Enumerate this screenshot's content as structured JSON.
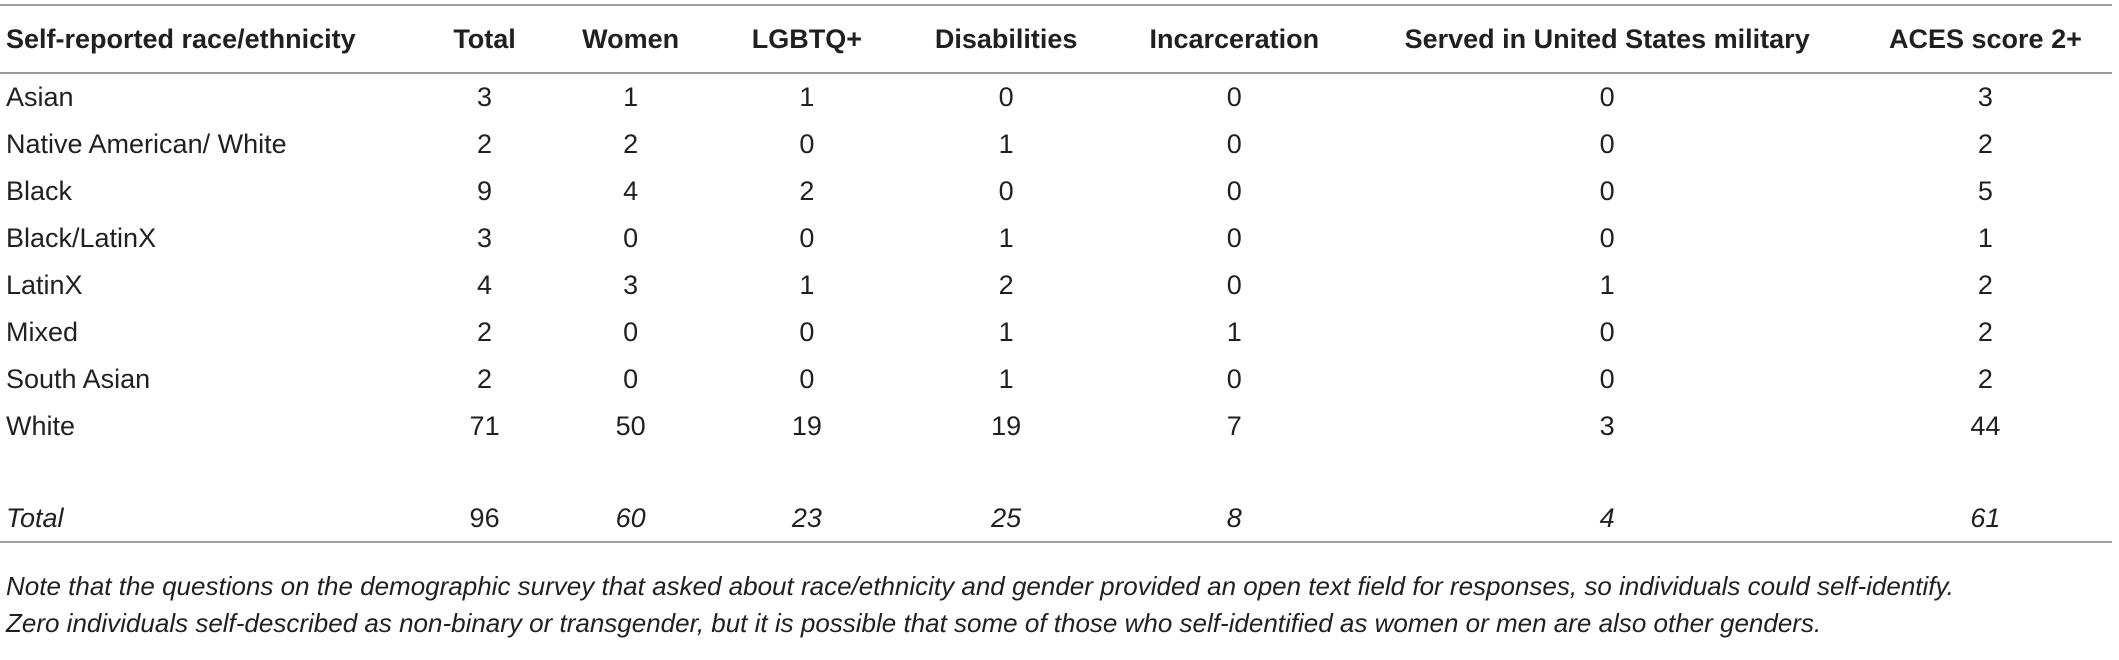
{
  "table": {
    "headers": [
      "Self-reported race/ethnicity",
      "Total",
      "Women",
      "LGBTQ+",
      "Disabilities",
      "Incarceration",
      "Served in United States military",
      "ACES score 2+"
    ],
    "rows": [
      [
        "Asian",
        "3",
        "1",
        "1",
        "0",
        "0",
        "0",
        "3"
      ],
      [
        "Native American/ White",
        "2",
        "2",
        "0",
        "1",
        "0",
        "0",
        "2"
      ],
      [
        "Black",
        "9",
        "4",
        "2",
        "0",
        "0",
        "0",
        "5"
      ],
      [
        "Black/LatinX",
        "3",
        "0",
        "0",
        "1",
        "0",
        "0",
        "1"
      ],
      [
        "LatinX",
        "4",
        "3",
        "1",
        "2",
        "0",
        "1",
        "2"
      ],
      [
        "Mixed",
        "2",
        "0",
        "0",
        "1",
        "1",
        "0",
        "2"
      ],
      [
        "South Asian",
        "2",
        "0",
        "0",
        "1",
        "0",
        "0",
        "2"
      ],
      [
        "White",
        "71",
        "50",
        "19",
        "19",
        "7",
        "3",
        "44"
      ]
    ],
    "total_row": [
      "Total",
      "96",
      "60",
      "23",
      "25",
      "8",
      "4",
      "61"
    ]
  },
  "note": {
    "line1": "Note that the questions on the demographic survey that asked about race/ethnicity and gender provided an open text field for responses, so individuals could self-identify.",
    "line2": "Zero individuals self-described as non-binary or transgender, but it is possible that some of those who self-identified as women or men are also other genders."
  }
}
